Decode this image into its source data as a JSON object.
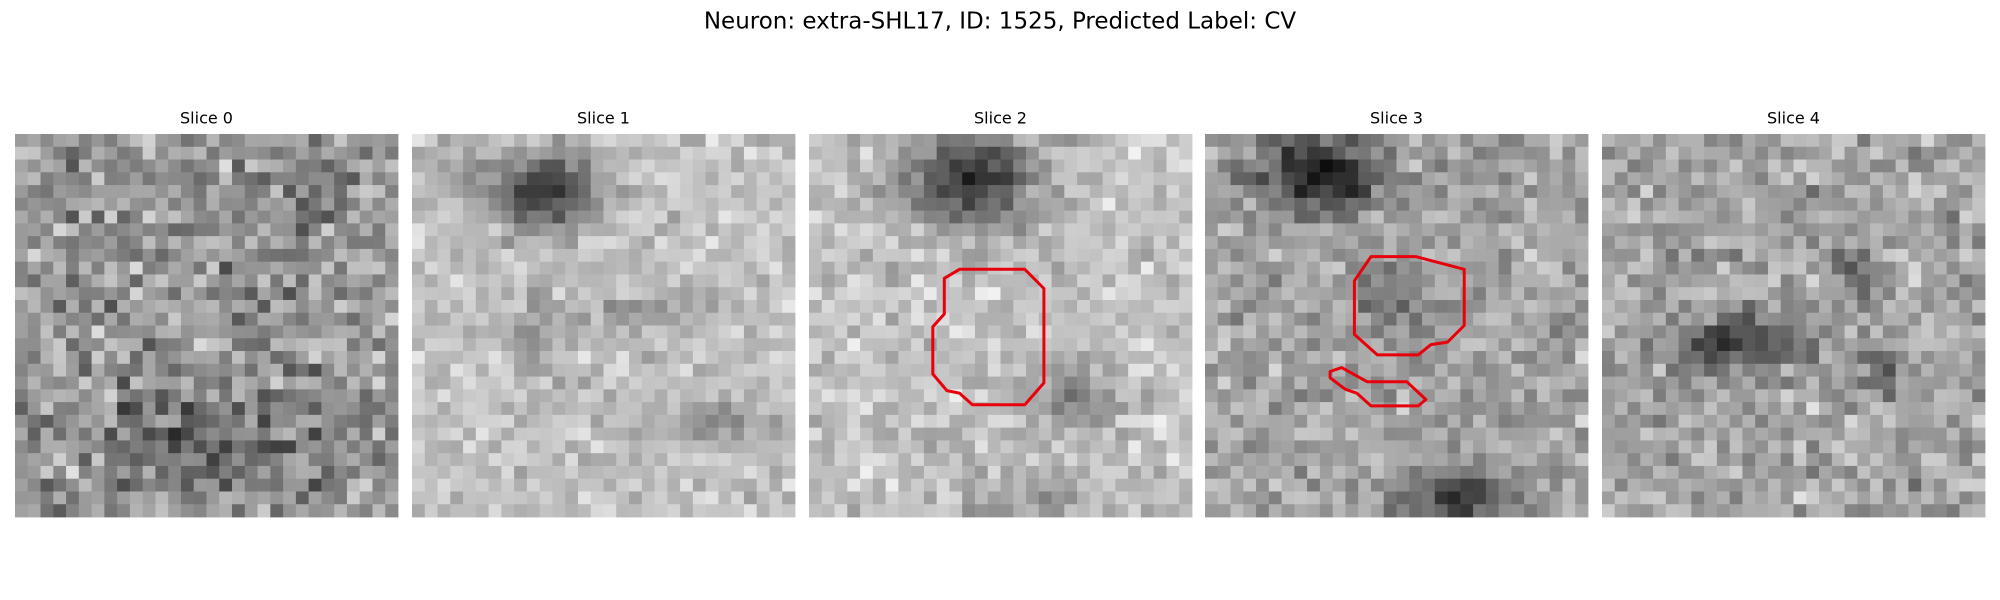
{
  "title": "Neuron: extra-SHL17, ID: 1525, Predicted Label: CV",
  "panels": [
    {
      "title": "Slice 0"
    },
    {
      "title": "Slice 1"
    },
    {
      "title": "Slice 2"
    },
    {
      "title": "Slice 3"
    },
    {
      "title": "Slice 4"
    }
  ]
}
